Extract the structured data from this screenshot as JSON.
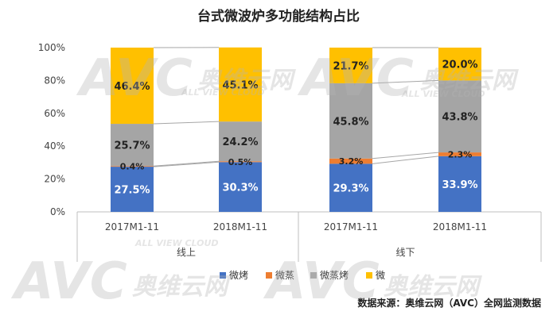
{
  "chart_data": {
    "type": "bar",
    "stacked": true,
    "percent": true,
    "title": "台式微波炉多功能结构占比",
    "ylim": [
      0,
      100
    ],
    "yticks": [
      "0%",
      "20%",
      "40%",
      "60%",
      "80%",
      "100%"
    ],
    "groups": [
      {
        "name": "线上",
        "categories": [
          "2017M1-11",
          "2018M1-11"
        ]
      },
      {
        "name": "线下",
        "categories": [
          "2017M1-11",
          "2018M1-11"
        ]
      }
    ],
    "series": [
      {
        "name": "微烤",
        "color": "#4472C4",
        "values": [
          27.5,
          30.3,
          29.3,
          33.9
        ],
        "labels": [
          "27.5%",
          "30.3%",
          "29.3%",
          "33.9%"
        ]
      },
      {
        "name": "微蒸",
        "color": "#ED7D31",
        "values": [
          0.4,
          0.5,
          3.2,
          2.3
        ],
        "labels": [
          "0.4%",
          "0.5%",
          "3.2%",
          "2.3%"
        ]
      },
      {
        "name": "微蒸烤",
        "color": "#A5A5A5",
        "values": [
          25.7,
          24.2,
          45.8,
          43.8
        ],
        "labels": [
          "25.7%",
          "24.2%",
          "45.8%",
          "43.8%"
        ]
      },
      {
        "name": "微",
        "color": "#FFC000",
        "values": [
          46.4,
          45.1,
          21.7,
          20.0
        ],
        "labels": [
          "46.4%",
          "45.1%",
          "21.7%",
          "20.0%"
        ]
      }
    ],
    "legend": "bottom",
    "grid": false
  },
  "source": "数据来源：奥维云网（AVC）全网监测数据",
  "watermark": {
    "logo": "AVC",
    "brand": "奥维云网",
    "sub": "ALL VIEW CLOUD"
  }
}
